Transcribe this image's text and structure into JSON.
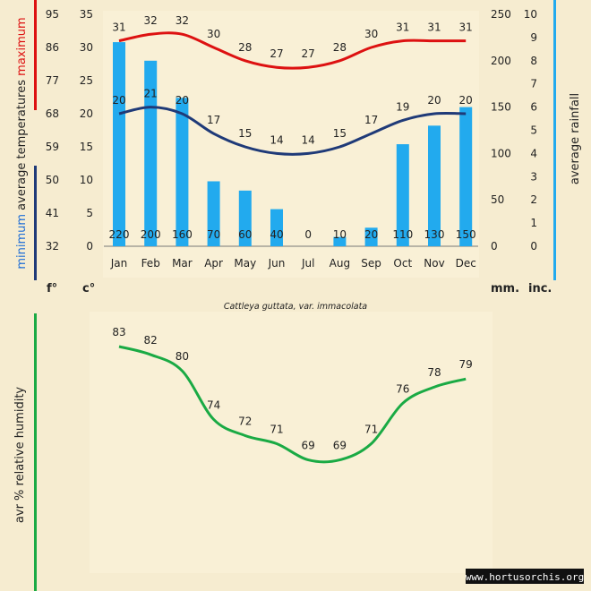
{
  "chart_data": [
    {
      "type": "bar+line",
      "categories": [
        "Jan",
        "Feb",
        "Mar",
        "Apr",
        "May",
        "Jun",
        "Jul",
        "Aug",
        "Sep",
        "Oct",
        "Nov",
        "Dec"
      ],
      "rainfall_mm": [
        220,
        200,
        160,
        70,
        60,
        40,
        0,
        10,
        20,
        110,
        130,
        150
      ],
      "temp_max_c": [
        31,
        32,
        32,
        30,
        28,
        27,
        27,
        28,
        30,
        31,
        31,
        31
      ],
      "temp_min_c": [
        20,
        21,
        20,
        17,
        15,
        14,
        14,
        15,
        17,
        19,
        20,
        20
      ],
      "celsius_ticks": [
        "35",
        "30",
        "25",
        "20",
        "15",
        "10",
        "5",
        "0"
      ],
      "fahrenheit_ticks": [
        "95",
        "86",
        "77",
        "68",
        "59",
        "50",
        "41",
        "32"
      ],
      "mm_ticks": [
        "250",
        "200",
        "150",
        "100",
        "50",
        "0"
      ],
      "inch_ticks": [
        "10",
        "9",
        "8",
        "7",
        "6",
        "5",
        "4",
        "3",
        "2",
        "1",
        "0"
      ],
      "ylim_c": [
        0,
        35
      ],
      "ylim_mm": [
        0,
        250
      ],
      "ylabel_left_parts": [
        "minimum",
        "average temperatures",
        "maximum"
      ],
      "ylabel_right": "average rainfall",
      "unit_f": "f°",
      "unit_c": "c°",
      "unit_mm": "mm.",
      "unit_inch": "inc.",
      "colors": {
        "bars": "#22aaee",
        "max_line": "#dd1111",
        "min_line": "#1f3a78",
        "max_label": "#dd1111",
        "min_label": "#1f6ed6"
      }
    },
    {
      "type": "line",
      "categories": [
        "Jan",
        "Feb",
        "Mar",
        "Apr",
        "May",
        "Jun",
        "Jul",
        "Aug",
        "Sep",
        "Oct",
        "Nov",
        "Dec"
      ],
      "humidity_pct": [
        83,
        82,
        80,
        74,
        72,
        71,
        69,
        69,
        71,
        76,
        78,
        79
      ],
      "ylabel": "avr % relative humidity",
      "colors": {
        "line": "#1aaa44"
      }
    }
  ],
  "caption": "Cattleya guttata, var. immacolata",
  "watermark": "www.hortusorchis.org"
}
